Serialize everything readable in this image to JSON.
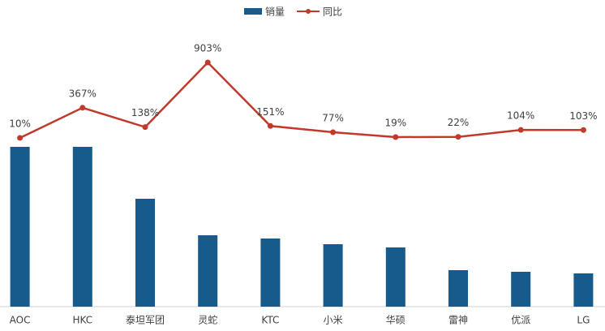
{
  "chart_data": {
    "type": "bar",
    "categories": [
      "AOC",
      "HKC",
      "泰坦军团",
      "灵蛇",
      "KTC",
      "小米",
      "华硕",
      "雷神",
      "优派",
      "LG"
    ],
    "series": [
      {
        "name": "销量",
        "type": "bar",
        "color": "#175a8c",
        "values": [
          197,
          197,
          133,
          88,
          84,
          77,
          73,
          45,
          43,
          41
        ]
      },
      {
        "name": "同比",
        "type": "line",
        "axis": "y2",
        "color": "#c0392b",
        "values": [
          10,
          367,
          138,
          903,
          151,
          77,
          19,
          22,
          104,
          103
        ],
        "value_labels": [
          "10%",
          "367%",
          "138%",
          "903%",
          "151%",
          "77%",
          "19%",
          "22%",
          "104%",
          "103%"
        ]
      }
    ],
    "legend": "top"
  }
}
